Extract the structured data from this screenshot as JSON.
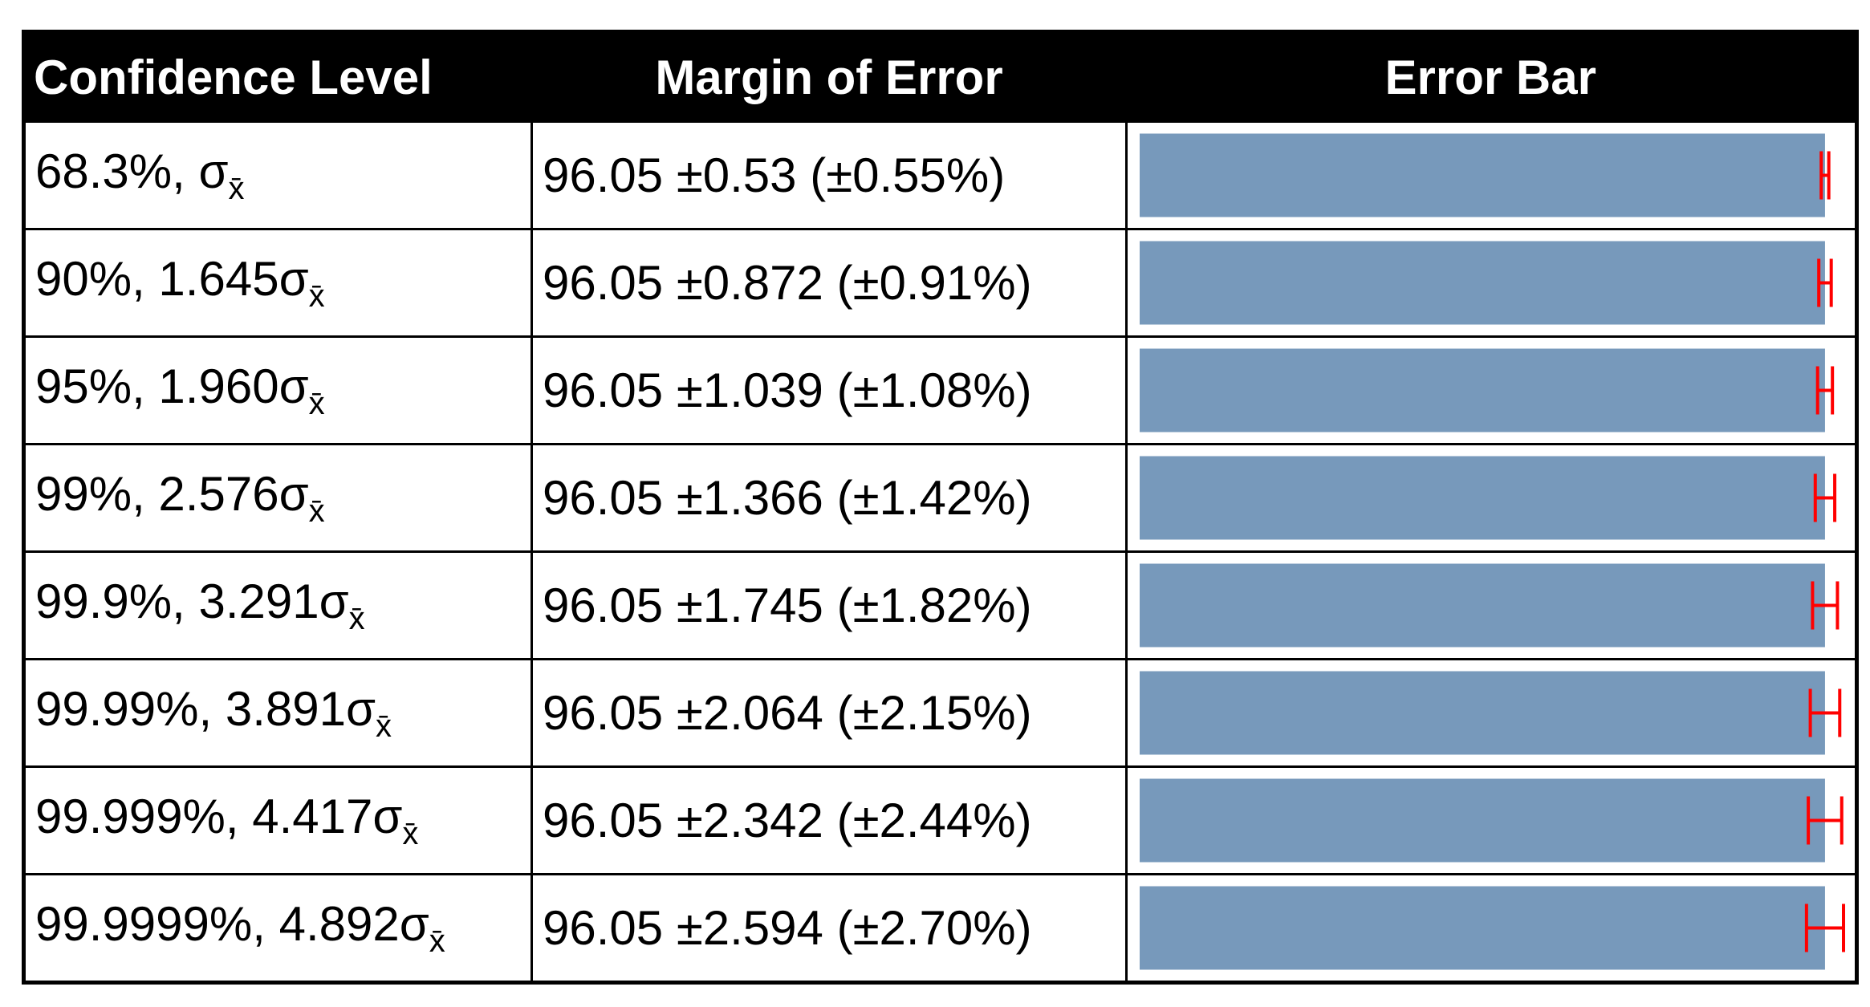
{
  "plus_minus": "±",
  "table": {
    "columns": [
      "Confidence Level",
      "Margin of Error",
      "Error Bar"
    ],
    "rows": [
      {
        "level": "68.3%, σ",
        "subscript": "x̄",
        "mean": 96.05,
        "margin": 0.53,
        "percent": "(±0.55%)"
      },
      {
        "level": "90%, 1.645σ",
        "subscript": "x̄",
        "mean": 96.05,
        "margin": 0.872,
        "percent": "(±0.91%)"
      },
      {
        "level": "95%, 1.960σ",
        "subscript": "x̄",
        "mean": 96.05,
        "margin": 1.039,
        "percent": "(±1.08%)"
      },
      {
        "level": "99%, 2.576σ",
        "subscript": "x̄",
        "mean": 96.05,
        "margin": 1.366,
        "percent": "(±1.42%)"
      },
      {
        "level": "99.9%, 3.291σ",
        "subscript": "x̄",
        "mean": 96.05,
        "margin": 1.745,
        "percent": "(±1.82%)"
      },
      {
        "level": "99.99%, 3.891σ",
        "subscript": "x̄",
        "mean": 96.05,
        "margin": 2.064,
        "percent": "(±2.15%)"
      },
      {
        "level": "99.999%, 4.417σ",
        "subscript": "x̄",
        "mean": 96.05,
        "margin": 2.342,
        "percent": "(±2.44%)"
      },
      {
        "level": "99.9999%, 4.892σ",
        "subscript": "x̄",
        "mean": 96.05,
        "margin": 2.594,
        "percent": "(±2.70%)"
      }
    ]
  }
}
